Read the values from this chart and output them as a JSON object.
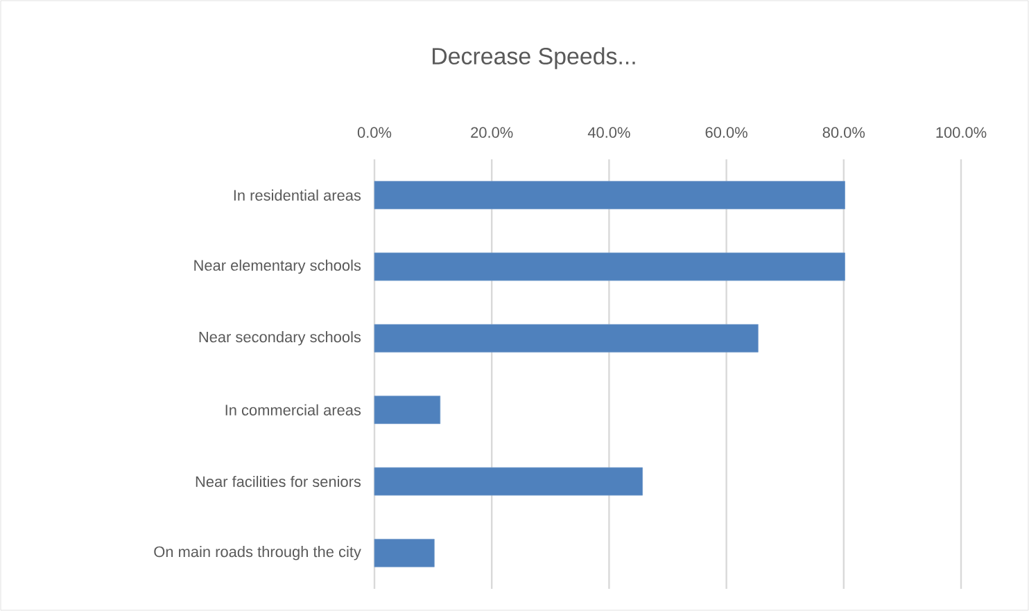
{
  "chart_data": {
    "type": "bar",
    "orientation": "horizontal",
    "title": "Decrease Speeds...",
    "categories": [
      "In residential areas",
      "Near elementary schools",
      "Near secondary schools",
      "In commercial areas",
      "Near facilities for seniors",
      "On main roads through the city"
    ],
    "values": [
      80.2,
      80.2,
      65.4,
      11.2,
      45.7,
      10.2
    ],
    "color": "#4f81bd",
    "xlim": [
      0,
      100
    ],
    "xticks": [
      {
        "value": 0,
        "label": "0.0%"
      },
      {
        "value": 20,
        "label": "20.0%"
      },
      {
        "value": 40,
        "label": "40.0%"
      },
      {
        "value": 60,
        "label": "60.0%"
      },
      {
        "value": 80,
        "label": "80.0%"
      },
      {
        "value": 100,
        "label": "100.0%"
      }
    ],
    "grid": "x"
  }
}
